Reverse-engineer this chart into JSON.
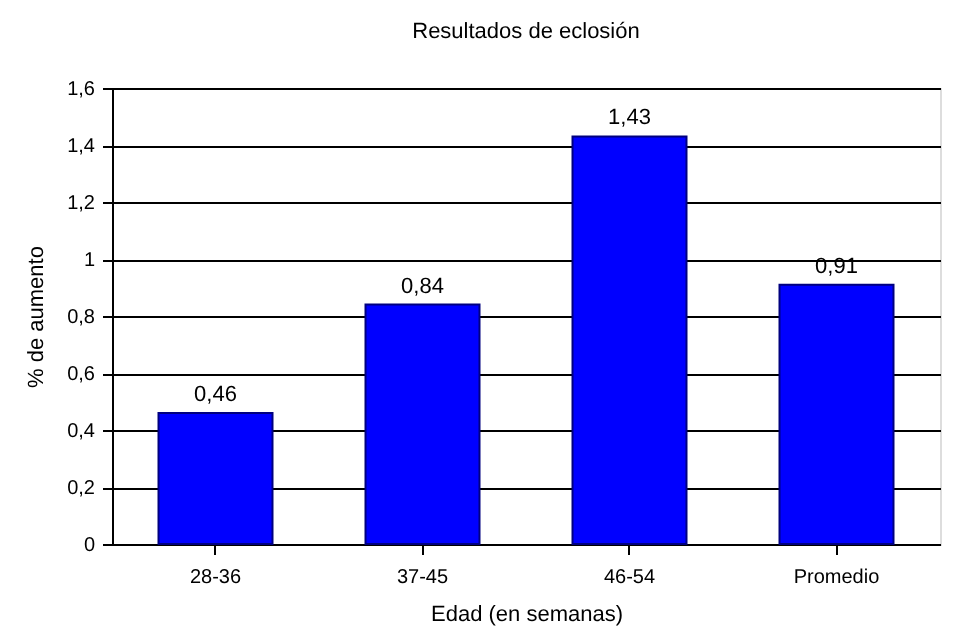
{
  "chart_data": {
    "type": "bar",
    "title": "Resultados de eclosión",
    "xlabel": "Edad (en semanas)",
    "ylabel": "% de aumento",
    "categories": [
      "28-36",
      "37-45",
      "46-54",
      "Promedio"
    ],
    "values": [
      0.46,
      0.84,
      1.43,
      0.91
    ],
    "value_labels": [
      "0,46",
      "0,84",
      "1,43",
      "0,91"
    ],
    "color": "#0000ff",
    "ylim": [
      0,
      1.6
    ],
    "yticks": [
      0,
      {
        "value": 0.2,
        "label": "0,2"
      },
      {
        "value": 0.4,
        "label": "0,4"
      },
      {
        "value": 0.6,
        "label": "0,6"
      },
      {
        "value": 0.8,
        "label": "0,8"
      },
      1,
      {
        "value": 1.2,
        "label": "1,2"
      },
      {
        "value": 1.4,
        "label": "1,4"
      },
      {
        "value": 1.6,
        "label": "1,6"
      }
    ],
    "grid": "y"
  }
}
